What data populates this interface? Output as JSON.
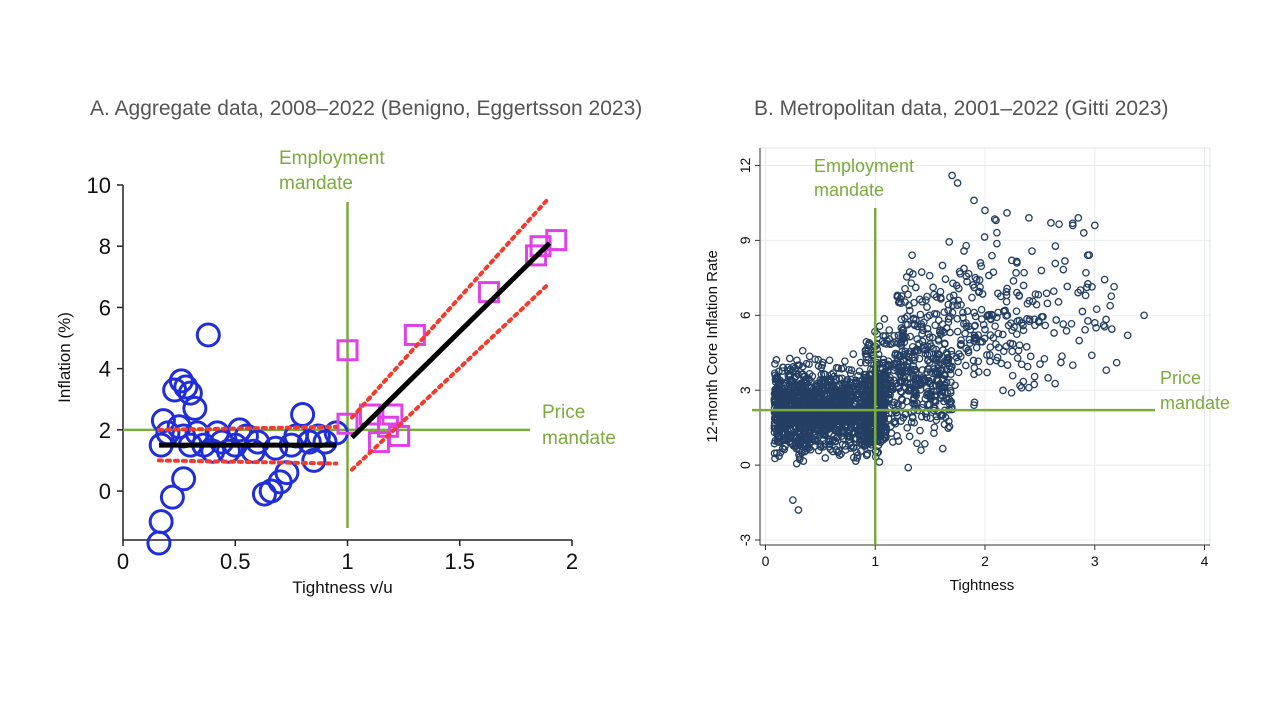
{
  "colors": {
    "mandate_line": "#7aab3c",
    "circle_marker": "#1f2ed8",
    "square_marker": "#e040e8",
    "fit_line": "#000000",
    "ci_line": "#f23b2c",
    "metro_marker": "#243f63",
    "grid": "#e8ecf1"
  },
  "chart_data": [
    {
      "type": "scatter",
      "title": "A. Aggregate data, 2008–2022 (Benigno, Eggertsson 2023)",
      "xlabel": "Tightness v/u",
      "ylabel": "Inflation (%)",
      "xlim": [
        0,
        2
      ],
      "ylim": [
        -1.6,
        10
      ],
      "x_ticks": [
        "0",
        "0.5",
        "1",
        "1.5",
        "2"
      ],
      "y_ticks": [
        "0",
        "2",
        "4",
        "6",
        "8",
        "10"
      ],
      "grid": false,
      "annotations": {
        "employment_mandate": [
          "Employment",
          "mandate"
        ],
        "price_mandate": [
          "Price",
          "mandate"
        ]
      },
      "reference_lines": {
        "vertical_x": 1.0,
        "horizontal_y": 2.0
      },
      "series": [
        {
          "marker": "circle",
          "points": [
            [
              0.16,
              -1.7
            ],
            [
              0.17,
              -1.0
            ],
            [
              0.22,
              -0.2
            ],
            [
              0.27,
              0.4
            ],
            [
              0.17,
              1.5
            ],
            [
              0.18,
              2.3
            ],
            [
              0.2,
              1.9
            ],
            [
              0.23,
              3.3
            ],
            [
              0.26,
              3.6
            ],
            [
              0.28,
              3.4
            ],
            [
              0.3,
              3.2
            ],
            [
              0.32,
              2.7
            ],
            [
              0.25,
              2.1
            ],
            [
              0.27,
              1.8
            ],
            [
              0.3,
              1.5
            ],
            [
              0.33,
              1.9
            ],
            [
              0.36,
              1.5
            ],
            [
              0.38,
              5.1
            ],
            [
              0.4,
              1.3
            ],
            [
              0.44,
              1.6
            ],
            [
              0.47,
              1.3
            ],
            [
              0.5,
              1.5
            ],
            [
              0.52,
              2.0
            ],
            [
              0.55,
              1.8
            ],
            [
              0.58,
              1.3
            ],
            [
              0.6,
              1.6
            ],
            [
              0.63,
              -0.1
            ],
            [
              0.66,
              0.0
            ],
            [
              0.7,
              0.3
            ],
            [
              0.73,
              0.6
            ],
            [
              0.75,
              1.5
            ],
            [
              0.77,
              1.8
            ],
            [
              0.8,
              2.5
            ],
            [
              0.83,
              1.6
            ],
            [
              0.87,
              1.8
            ],
            [
              0.9,
              1.6
            ],
            [
              0.95,
              1.9
            ],
            [
              0.85,
              1.0
            ],
            [
              0.42,
              1.9
            ],
            [
              0.68,
              1.4
            ]
          ]
        },
        {
          "marker": "square",
          "points": [
            [
              1.0,
              4.6
            ],
            [
              1.1,
              2.5
            ],
            [
              1.14,
              1.6
            ],
            [
              1.18,
              2.1
            ],
            [
              1.2,
              2.5
            ],
            [
              1.23,
              1.8
            ],
            [
              1.3,
              5.1
            ],
            [
              1.63,
              6.5
            ],
            [
              1.84,
              7.7
            ],
            [
              1.86,
              8.0
            ],
            [
              1.93,
              8.2
            ],
            [
              1.0,
              2.2
            ]
          ]
        }
      ],
      "fit": {
        "segments": [
          [
            [
              0.16,
              1.5
            ],
            [
              0.95,
              1.5
            ]
          ],
          [
            [
              1.02,
              1.75
            ],
            [
              1.9,
              8.1
            ]
          ]
        ],
        "ci_upper": [
          [
            [
              0.16,
              2.0
            ],
            [
              0.95,
              2.1
            ]
          ],
          [
            [
              1.02,
              2.4
            ],
            [
              1.9,
              9.6
            ]
          ]
        ],
        "ci_lower": [
          [
            [
              0.16,
              1.0
            ],
            [
              0.95,
              0.9
            ]
          ],
          [
            [
              1.02,
              0.7
            ],
            [
              1.9,
              6.8
            ]
          ]
        ]
      }
    },
    {
      "type": "scatter",
      "title": "B. Metropolitan data, 2001–2022 (Gitti 2023)",
      "xlabel": "Tightness",
      "ylabel": "12-month Core Inflation Rate",
      "xlim": [
        -0.05,
        4.05
      ],
      "ylim": [
        -3.2,
        12.7
      ],
      "x_ticks": [
        "0",
        "1",
        "2",
        "3",
        "4"
      ],
      "y_ticks": [
        "-3",
        "0",
        "3",
        "6",
        "9",
        "12"
      ],
      "grid": true,
      "annotations": {
        "employment_mandate": [
          "Employment",
          "mandate"
        ],
        "price_mandate": [
          "Price",
          "mandate"
        ]
      },
      "reference_lines": {
        "vertical_x": 1.0,
        "horizontal_y": 2.2
      },
      "series": [
        {
          "marker": "hollow-circle",
          "clusters": [
            {
              "n": 1500,
              "x_range": [
                0.08,
                1.1
              ],
              "y_mean": 2.2,
              "y_sd": 1.1
            },
            {
              "n": 450,
              "x_range": [
                0.9,
                1.7
              ],
              "y_mean": 3.4,
              "y_sd": 1.5
            },
            {
              "n": 230,
              "x_range": [
                1.2,
                2.5
              ],
              "y_mean": 5.5,
              "y_sd": 1.8
            },
            {
              "n": 110,
              "x_range": [
                1.6,
                3.2
              ],
              "y_mean": 6.5,
              "y_sd": 2.1
            }
          ],
          "points": [
            [
              1.7,
              11.6
            ],
            [
              1.75,
              11.3
            ],
            [
              1.9,
              10.6
            ],
            [
              2.0,
              10.2
            ],
            [
              2.1,
              9.8
            ],
            [
              2.2,
              10.1
            ],
            [
              2.4,
              9.9
            ],
            [
              2.6,
              9.7
            ],
            [
              2.8,
              9.6
            ],
            [
              2.85,
              9.9
            ],
            [
              3.0,
              9.6
            ],
            [
              2.9,
              9.3
            ],
            [
              3.45,
              6.0
            ],
            [
              3.2,
              4.1
            ],
            [
              3.0,
              5.7
            ],
            [
              3.3,
              5.2
            ],
            [
              2.4,
              3.1
            ],
            [
              2.8,
              4.0
            ],
            [
              1.6,
              2.0
            ],
            [
              1.9,
              2.4
            ],
            [
              1.3,
              -0.1
            ],
            [
              0.3,
              -1.8
            ],
            [
              0.25,
              -1.4
            ]
          ]
        }
      ]
    }
  ]
}
